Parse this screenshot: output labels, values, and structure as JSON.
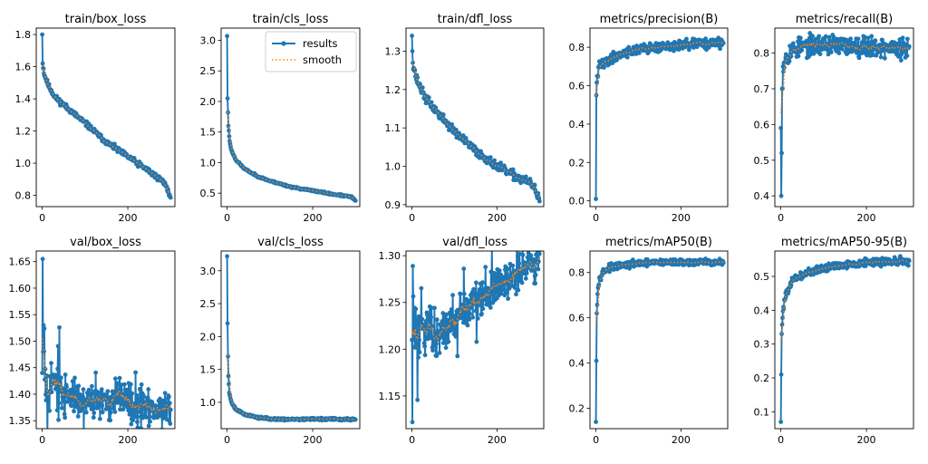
{
  "colors": {
    "results": "#1f77b4",
    "smooth": "#ff7f0e"
  },
  "legend": {
    "results_label": "results",
    "smooth_label": "smooth"
  },
  "chart_data": [
    {
      "type": "line",
      "title": "train/box_loss",
      "xlim": [
        -14,
        310
      ],
      "ylim": [
        0.73,
        1.84
      ],
      "xticks": [
        0,
        200
      ],
      "yticks": [
        0.8,
        1.0,
        1.2,
        1.4,
        1.6,
        1.8
      ],
      "ytick_labels": [
        "0.8",
        "1.0",
        "1.2",
        "1.4",
        "1.6",
        "1.8"
      ],
      "kind": "trend",
      "x_end": 300,
      "noise": 0.012,
      "seed": 11,
      "anchors": [
        [
          0,
          1.8
        ],
        [
          1,
          1.62
        ],
        [
          5,
          1.55
        ],
        [
          15,
          1.48
        ],
        [
          30,
          1.41
        ],
        [
          60,
          1.34
        ],
        [
          100,
          1.25
        ],
        [
          150,
          1.13
        ],
        [
          200,
          1.04
        ],
        [
          250,
          0.95
        ],
        [
          280,
          0.89
        ],
        [
          290,
          0.86
        ],
        [
          300,
          0.78
        ]
      ]
    },
    {
      "type": "line",
      "title": "train/cls_loss",
      "legend": true,
      "xlim": [
        -14,
        310
      ],
      "ylim": [
        0.28,
        3.2
      ],
      "xticks": [
        0,
        200
      ],
      "yticks": [
        0.5,
        1.0,
        1.5,
        2.0,
        2.5,
        3.0
      ],
      "ytick_labels": [
        "0.5",
        "1.0",
        "1.5",
        "2.0",
        "2.5",
        "3.0"
      ],
      "kind": "trend",
      "x_end": 300,
      "noise": 0.01,
      "seed": 23,
      "anchors": [
        [
          0,
          3.07
        ],
        [
          1,
          2.05
        ],
        [
          3,
          1.6
        ],
        [
          6,
          1.35
        ],
        [
          10,
          1.2
        ],
        [
          20,
          1.05
        ],
        [
          40,
          0.9
        ],
        [
          70,
          0.78
        ],
        [
          100,
          0.7
        ],
        [
          150,
          0.6
        ],
        [
          200,
          0.54
        ],
        [
          250,
          0.48
        ],
        [
          290,
          0.44
        ],
        [
          300,
          0.38
        ]
      ]
    },
    {
      "type": "line",
      "title": "train/dfl_loss",
      "xlim": [
        -14,
        310
      ],
      "ylim": [
        0.895,
        1.36
      ],
      "xticks": [
        0,
        200
      ],
      "yticks": [
        0.9,
        1.0,
        1.1,
        1.2,
        1.3
      ],
      "ytick_labels": [
        "0.9",
        "1.0",
        "1.1",
        "1.2",
        "1.3"
      ],
      "kind": "trend",
      "x_end": 300,
      "noise": 0.008,
      "seed": 37,
      "anchors": [
        [
          0,
          1.34
        ],
        [
          2,
          1.27
        ],
        [
          10,
          1.23
        ],
        [
          30,
          1.18
        ],
        [
          60,
          1.14
        ],
        [
          100,
          1.09
        ],
        [
          150,
          1.04
        ],
        [
          200,
          1.0
        ],
        [
          250,
          0.97
        ],
        [
          280,
          0.955
        ],
        [
          290,
          0.94
        ],
        [
          300,
          0.915
        ]
      ]
    },
    {
      "type": "line",
      "title": "metrics/precision(B)",
      "xlim": [
        -14,
        310
      ],
      "ylim": [
        -0.03,
        0.9
      ],
      "xticks": [
        0,
        200
      ],
      "yticks": [
        0.0,
        0.2,
        0.4,
        0.6,
        0.8
      ],
      "ytick_labels": [
        "0.0",
        "0.2",
        "0.4",
        "0.6",
        "0.8"
      ],
      "kind": "rise",
      "x_end": 300,
      "noise": 0.018,
      "seed": 41,
      "anchors": [
        [
          0,
          0.01
        ],
        [
          1,
          0.55
        ],
        [
          3,
          0.65
        ],
        [
          8,
          0.7
        ],
        [
          20,
          0.72
        ],
        [
          50,
          0.76
        ],
        [
          100,
          0.79
        ],
        [
          150,
          0.8
        ],
        [
          200,
          0.81
        ],
        [
          250,
          0.82
        ],
        [
          300,
          0.82
        ]
      ]
    },
    {
      "type": "line",
      "title": "metrics/recall(B)",
      "xlim": [
        -14,
        310
      ],
      "ylim": [
        0.37,
        0.87
      ],
      "xticks": [
        0,
        200
      ],
      "yticks": [
        0.4,
        0.5,
        0.6,
        0.7,
        0.8
      ],
      "ytick_labels": [
        "0.4",
        "0.5",
        "0.6",
        "0.7",
        "0.8"
      ],
      "kind": "rise",
      "x_end": 300,
      "noise": 0.02,
      "seed": 53,
      "anchors": [
        [
          0,
          0.59
        ],
        [
          1,
          0.4
        ],
        [
          2,
          0.52
        ],
        [
          3,
          0.7
        ],
        [
          5,
          0.76
        ],
        [
          10,
          0.79
        ],
        [
          30,
          0.81
        ],
        [
          60,
          0.82
        ],
        [
          100,
          0.825
        ],
        [
          150,
          0.82
        ],
        [
          200,
          0.82
        ],
        [
          250,
          0.815
        ],
        [
          300,
          0.81
        ]
      ]
    },
    {
      "type": "line",
      "title": "val/box_loss",
      "xlim": [
        -14,
        310
      ],
      "ylim": [
        1.335,
        1.67
      ],
      "xticks": [
        0,
        200
      ],
      "yticks": [
        1.35,
        1.4,
        1.45,
        1.5,
        1.55,
        1.6,
        1.65
      ],
      "ytick_labels": [
        "1.35",
        "1.40",
        "1.45",
        "1.50",
        "1.55",
        "1.60",
        "1.65"
      ],
      "kind": "noisy",
      "x_end": 300,
      "noise": 0.022,
      "seed": 67,
      "anchors": [
        [
          0,
          1.44
        ],
        [
          1,
          1.655
        ],
        [
          2,
          1.48
        ],
        [
          3,
          1.53
        ],
        [
          4,
          1.49
        ],
        [
          6,
          1.44
        ],
        [
          10,
          1.43
        ],
        [
          20,
          1.42
        ],
        [
          40,
          1.405
        ],
        [
          60,
          1.395
        ],
        [
          100,
          1.39
        ],
        [
          150,
          1.39
        ],
        [
          200,
          1.385
        ],
        [
          250,
          1.375
        ],
        [
          300,
          1.375
        ]
      ]
    },
    {
      "type": "line",
      "title": "val/cls_loss",
      "xlim": [
        -14,
        310
      ],
      "ylim": [
        0.6,
        3.3
      ],
      "xticks": [
        0,
        200
      ],
      "yticks": [
        1.0,
        1.5,
        2.0,
        2.5,
        3.0
      ],
      "ytick_labels": [
        "1.0",
        "1.5",
        "2.0",
        "2.5",
        "3.0"
      ],
      "kind": "trend",
      "x_end": 300,
      "noise": 0.012,
      "seed": 79,
      "anchors": [
        [
          0,
          3.22
        ],
        [
          1,
          2.2
        ],
        [
          2,
          1.7
        ],
        [
          3,
          1.4
        ],
        [
          5,
          1.15
        ],
        [
          10,
          1.0
        ],
        [
          20,
          0.9
        ],
        [
          40,
          0.82
        ],
        [
          70,
          0.77
        ],
        [
          100,
          0.75
        ],
        [
          150,
          0.74
        ],
        [
          200,
          0.745
        ],
        [
          250,
          0.745
        ],
        [
          300,
          0.74
        ]
      ]
    },
    {
      "type": "line",
      "title": "val/dfl_loss",
      "xlim": [
        -14,
        310
      ],
      "ylim": [
        1.115,
        1.305
      ],
      "xticks": [
        0,
        200
      ],
      "yticks": [
        1.15,
        1.2,
        1.25,
        1.3
      ],
      "ytick_labels": [
        "1.15",
        "1.20",
        "1.25",
        "1.30"
      ],
      "kind": "noisy",
      "x_end": 300,
      "noise": 0.014,
      "seed": 83,
      "anchors": [
        [
          0,
          1.21
        ],
        [
          1,
          1.122
        ],
        [
          2,
          1.289
        ],
        [
          4,
          1.21
        ],
        [
          10,
          1.215
        ],
        [
          40,
          1.22
        ],
        [
          80,
          1.225
        ],
        [
          120,
          1.24
        ],
        [
          160,
          1.255
        ],
        [
          200,
          1.265
        ],
        [
          250,
          1.28
        ],
        [
          300,
          1.295
        ]
      ]
    },
    {
      "type": "line",
      "title": "metrics/mAP50(B)",
      "xlim": [
        -14,
        310
      ],
      "ylim": [
        0.11,
        0.895
      ],
      "xticks": [
        0,
        200
      ],
      "yticks": [
        0.2,
        0.4,
        0.6,
        0.8
      ],
      "ytick_labels": [
        "0.2",
        "0.4",
        "0.6",
        "0.8"
      ],
      "kind": "rise",
      "x_end": 300,
      "noise": 0.01,
      "seed": 97,
      "anchors": [
        [
          0,
          0.14
        ],
        [
          1,
          0.41
        ],
        [
          2,
          0.62
        ],
        [
          4,
          0.72
        ],
        [
          8,
          0.77
        ],
        [
          15,
          0.8
        ],
        [
          30,
          0.82
        ],
        [
          60,
          0.83
        ],
        [
          100,
          0.84
        ],
        [
          150,
          0.845
        ],
        [
          200,
          0.845
        ],
        [
          250,
          0.845
        ],
        [
          300,
          0.845
        ]
      ]
    },
    {
      "type": "line",
      "title": "metrics/mAP50-95(B)",
      "xlim": [
        -14,
        310
      ],
      "ylim": [
        0.05,
        0.575
      ],
      "xticks": [
        0,
        200
      ],
      "yticks": [
        0.1,
        0.2,
        0.3,
        0.4,
        0.5
      ],
      "ytick_labels": [
        "0.1",
        "0.2",
        "0.3",
        "0.4",
        "0.5"
      ],
      "kind": "rise",
      "x_end": 300,
      "noise": 0.008,
      "seed": 101,
      "anchors": [
        [
          0,
          0.07
        ],
        [
          1,
          0.21
        ],
        [
          2,
          0.33
        ],
        [
          4,
          0.38
        ],
        [
          8,
          0.43
        ],
        [
          15,
          0.46
        ],
        [
          30,
          0.49
        ],
        [
          60,
          0.51
        ],
        [
          100,
          0.525
        ],
        [
          150,
          0.535
        ],
        [
          200,
          0.54
        ],
        [
          250,
          0.545
        ],
        [
          300,
          0.545
        ]
      ]
    }
  ]
}
